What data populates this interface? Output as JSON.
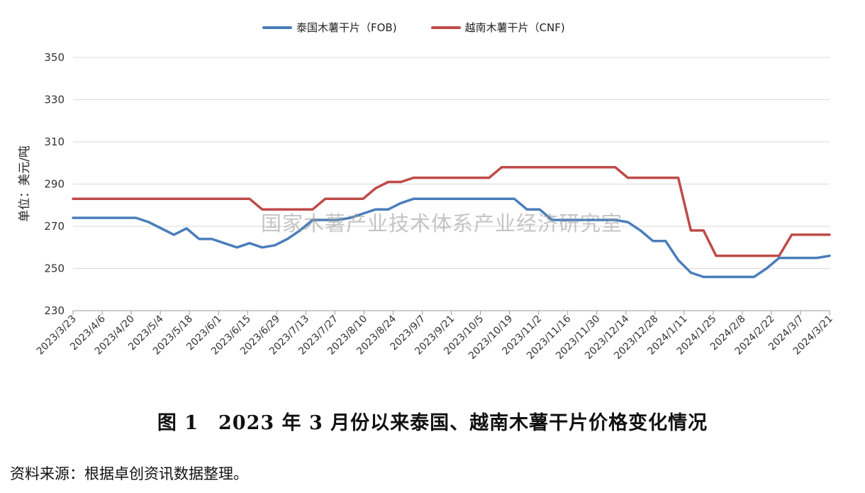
{
  "chart_data": {
    "type": "line",
    "title": "",
    "xlabel": "",
    "ylabel": "单位：美元/吨",
    "ylim": [
      230,
      350
    ],
    "yticks": [
      230,
      250,
      270,
      290,
      310,
      330,
      350
    ],
    "grid": true,
    "legend_position": "top",
    "x_labels": [
      "2023/3/23",
      "2023/4/6",
      "2023/4/20",
      "2023/5/4",
      "2023/5/18",
      "2023/6/1",
      "2023/6/15",
      "2023/6/29",
      "2023/7/13",
      "2023/7/27",
      "2023/8/10",
      "2023/8/24",
      "2023/9/7",
      "2023/9/21",
      "2023/10/5",
      "2023/10/19",
      "2023/11/2",
      "2023/11/16",
      "2023/11/30",
      "2023/12/14",
      "2023/12/28",
      "2024/1/11",
      "2024/1/25",
      "2024/2/8",
      "2024/2/22",
      "2024/3/7",
      "2024/3/21"
    ],
    "series": [
      {
        "name": "泰国木薯干片（FOB)",
        "color": "#4a7ebb",
        "values": [
          274,
          274,
          274,
          274,
          274,
          274,
          272,
          269,
          266,
          269,
          264,
          264,
          262,
          260,
          262,
          260,
          261,
          264,
          268,
          273,
          273,
          273,
          274,
          276,
          278,
          278,
          281,
          283,
          283,
          283,
          283,
          283,
          283,
          283,
          283,
          283,
          278,
          278,
          273,
          273,
          273,
          273,
          273,
          273,
          272,
          268,
          263,
          263,
          254,
          248,
          246,
          246,
          246,
          246,
          246,
          250,
          255,
          255,
          255,
          255,
          256
        ]
      },
      {
        "name": "越南木薯干片（CNF)",
        "color": "#be4b48",
        "values": [
          283,
          283,
          283,
          283,
          283,
          283,
          283,
          283,
          283,
          283,
          283,
          283,
          283,
          283,
          283,
          278,
          278,
          278,
          278,
          278,
          283,
          283,
          283,
          283,
          288,
          291,
          291,
          293,
          293,
          293,
          293,
          293,
          293,
          293,
          298,
          298,
          298,
          298,
          298,
          298,
          298,
          298,
          298,
          298,
          293,
          293,
          293,
          293,
          293,
          268,
          268,
          256,
          256,
          256,
          256,
          256,
          256,
          266,
          266,
          266,
          266
        ]
      }
    ]
  },
  "watermark": "国家木薯产业技术体系产业经济研究室",
  "caption": "图 1　2023 年 3 月份以来泰国、越南木薯干片价格变化情况",
  "source": "资料来源：根据卓创资讯数据整理。"
}
